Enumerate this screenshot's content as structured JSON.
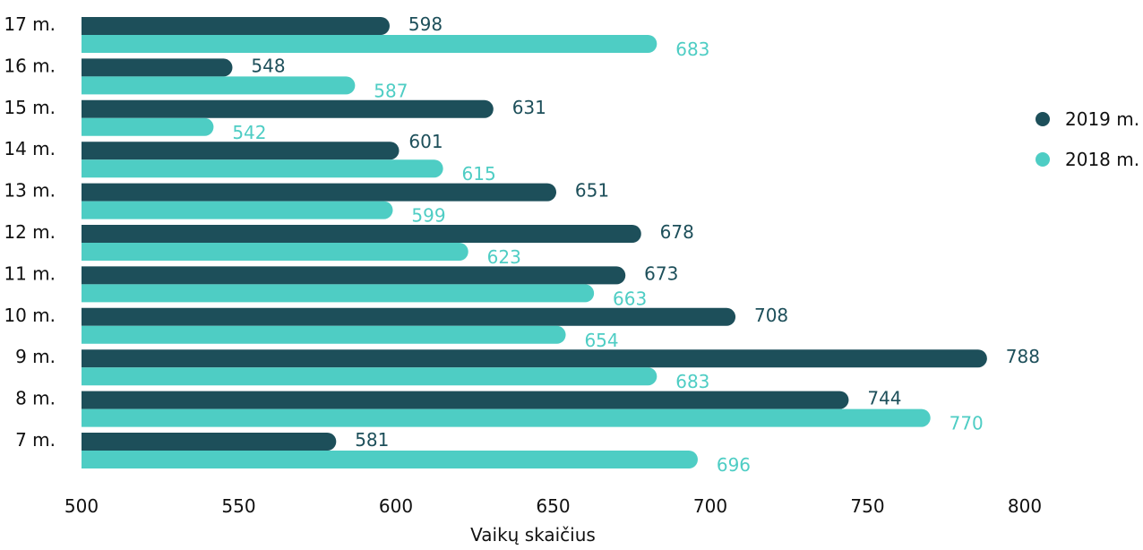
{
  "chart_data": {
    "type": "bar",
    "orientation": "horizontal",
    "categories": [
      "17 m.",
      "16 m.",
      "15 m.",
      "14 m.",
      "13 m.",
      "12 m.",
      "11 m.",
      "10 m.",
      "9 m.",
      "8 m.",
      "7 m."
    ],
    "series": [
      {
        "name": "2019 m.",
        "color": "#1d4f5a",
        "values": [
          598,
          548,
          631,
          601,
          651,
          678,
          673,
          708,
          788,
          744,
          581
        ]
      },
      {
        "name": "2018 m.",
        "color": "#4ecdc4",
        "values": [
          683,
          587,
          542,
          615,
          599,
          623,
          663,
          654,
          683,
          770,
          696
        ]
      }
    ],
    "xlabel": "Vaikų skaičius",
    "ylabel": "",
    "xlim": [
      500,
      800
    ],
    "xticks": [
      500,
      550,
      600,
      650,
      700,
      750,
      800
    ],
    "grid": false,
    "legend_position": "right"
  }
}
